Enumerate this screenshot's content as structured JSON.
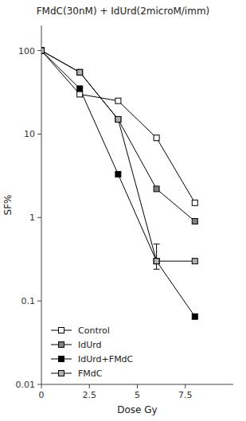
{
  "chart_data": {
    "type": "line",
    "title": "FMdC(30nM) + IdUrd(2microM/imm)",
    "x_label": "Dose Gy",
    "y_label": "SF%",
    "log": "y",
    "legend": "lower left",
    "x": [
      0,
      2,
      4,
      6,
      8
    ],
    "xlim": [
      0,
      10
    ],
    "xticks": [
      0,
      2.5,
      5,
      7.5
    ],
    "ylim": [
      0.01,
      200
    ],
    "yticks": [
      0.01,
      0.1,
      1,
      10,
      100
    ],
    "series": [
      {
        "name": "Control",
        "values": [
          100,
          30,
          25,
          9,
          1.5
        ],
        "color": "#ffffff",
        "marker": "square",
        "line_style": "solid"
      },
      {
        "name": "IdUrd",
        "values": [
          100,
          55,
          15,
          2.2,
          0.9
        ],
        "color": "#808080",
        "marker": "square",
        "line_style": "solid"
      },
      {
        "name": "IdUrd+FMdC",
        "values": [
          100,
          35,
          3.3,
          0.3,
          0.065
        ],
        "yerr_minus": [
          null,
          null,
          null,
          0.06,
          null
        ],
        "yerr_plus": [
          null,
          null,
          null,
          0.18,
          null
        ],
        "color": "#000000",
        "marker": "square",
        "line_style": "solid"
      },
      {
        "name": "FMdC",
        "values": [
          100,
          55,
          15,
          0.3,
          0.3
        ],
        "color": "#b0b0b0",
        "marker": "square",
        "line_style": "solid"
      }
    ]
  }
}
